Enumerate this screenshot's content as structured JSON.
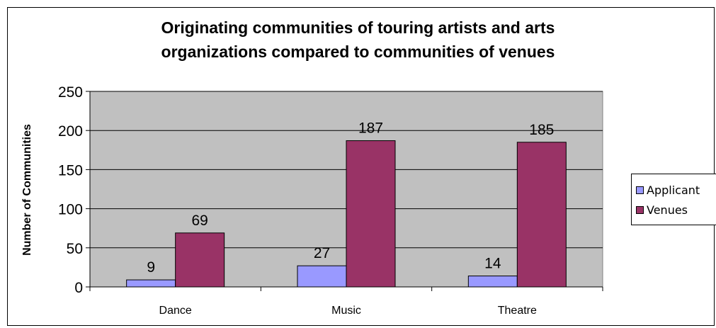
{
  "chart_data": {
    "type": "bar",
    "title": "Originating communities of touring artists and arts organizations compared to communities of venues",
    "title_lines": [
      "Originating communities of touring artists and arts",
      "organizations compared to communities of venues"
    ],
    "xlabel": "",
    "ylabel": "Number of Communities",
    "categories": [
      "Dance",
      "Music",
      "Theatre"
    ],
    "series": [
      {
        "name": "Applicant",
        "values": [
          9,
          27,
          14
        ],
        "color": "#9999ff"
      },
      {
        "name": "Venues",
        "values": [
          69,
          187,
          185
        ],
        "color": "#993366"
      }
    ],
    "ylim": [
      0,
      250
    ],
    "yticks": [
      0,
      50,
      100,
      150,
      200,
      250
    ],
    "grid": true,
    "plot_background": "#c0c0c0",
    "legend_position": "right",
    "data_labels": true
  }
}
